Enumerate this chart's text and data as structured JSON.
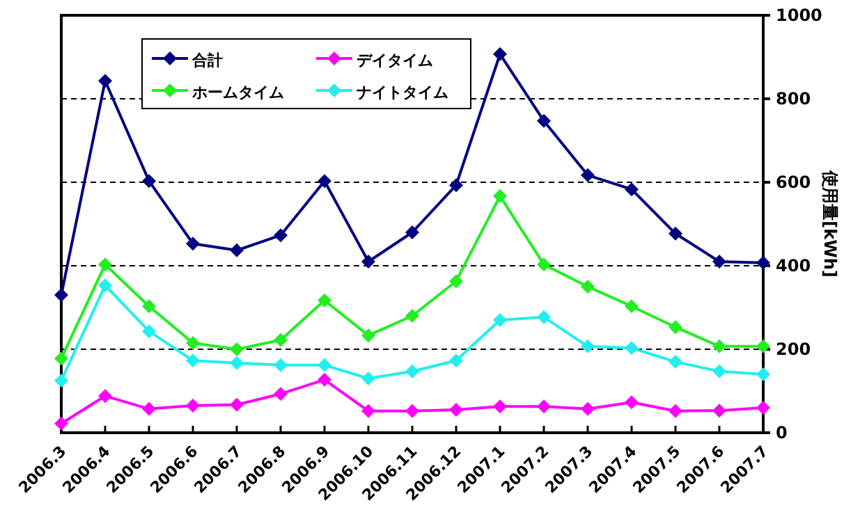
{
  "chart_data": {
    "type": "line",
    "ylabel": "使用量[kWh]",
    "categories": [
      "2006.3",
      "2006.4",
      "2006.5",
      "2006.6",
      "2006.7",
      "2006.8",
      "2006.9",
      "2006.10",
      "2006.11",
      "2006.12",
      "2007.1",
      "2007.2",
      "2007.3",
      "2007.4",
      "2007.5",
      "2007.6",
      "2007.7"
    ],
    "series": [
      {
        "name": "合計",
        "color": "#000080",
        "values": [
          330,
          843,
          603,
          453,
          437,
          473,
          603,
          410,
          480,
          593,
          907,
          747,
          617,
          583,
          477,
          410,
          407
        ]
      },
      {
        "name": "デイタイム",
        "color": "#ff00ff",
        "values": [
          22,
          88,
          57,
          65,
          67,
          93,
          127,
          52,
          52,
          55,
          63,
          63,
          57,
          73,
          52,
          53,
          60
        ]
      },
      {
        "name": "ホームタイム",
        "color": "#22ee22",
        "values": [
          178,
          403,
          303,
          215,
          200,
          222,
          317,
          233,
          280,
          363,
          567,
          403,
          350,
          303,
          253,
          207,
          207
        ]
      },
      {
        "name": "ナイトタイム",
        "color": "#22eeee",
        "values": [
          125,
          353,
          243,
          173,
          167,
          162,
          162,
          130,
          147,
          173,
          270,
          277,
          207,
          203,
          170,
          147,
          140
        ]
      }
    ],
    "ylim": [
      0,
      1000
    ],
    "yticks": [
      0,
      200,
      400,
      600,
      800,
      1000
    ],
    "grid": "y",
    "legend": "top left",
    "marker": "diamond",
    "line_style": "solid"
  }
}
